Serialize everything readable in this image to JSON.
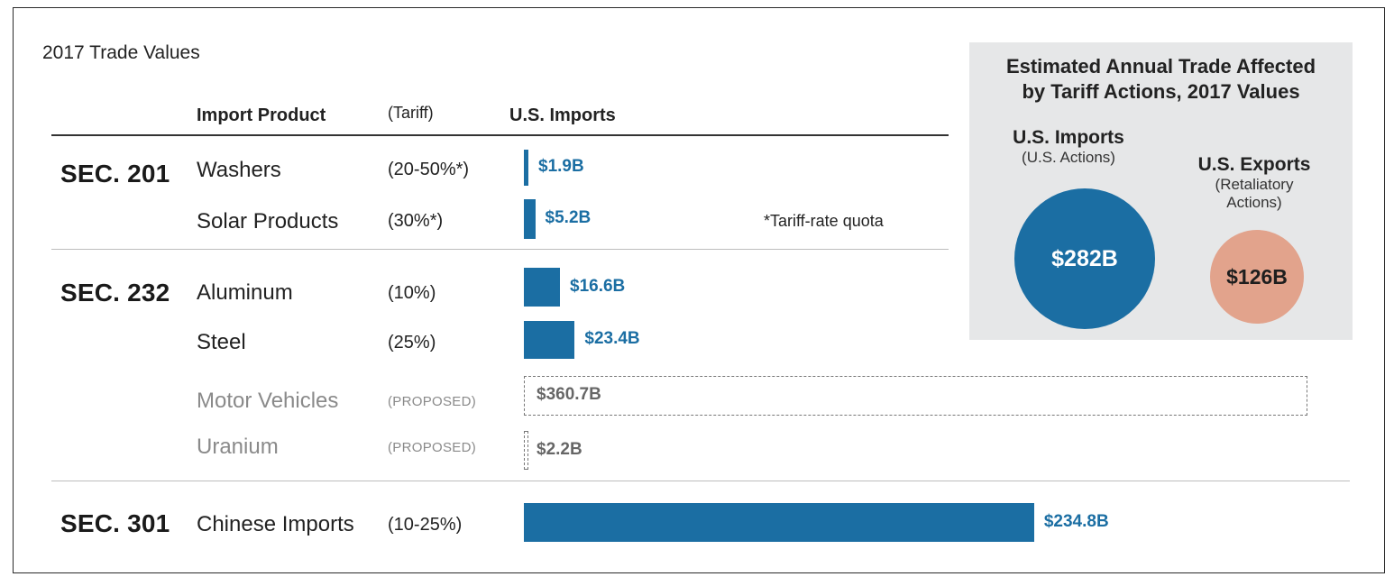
{
  "subtitle": "2017 Trade Values",
  "columns": {
    "product": "Import Product",
    "tariff": "(Tariff)",
    "imports": "U.S. Imports"
  },
  "footnote": "*Tariff-rate quota",
  "sections": [
    {
      "label": "SEC. 201"
    },
    {
      "label": "SEC. 232"
    },
    {
      "label": "SEC. 301"
    }
  ],
  "rows": [
    {
      "product": "Washers",
      "tariff": "(20-50%*)",
      "value_label": "$1.9B"
    },
    {
      "product": "Solar Products",
      "tariff": "(30%*)",
      "value_label": "$5.2B"
    },
    {
      "product": "Aluminum",
      "tariff": "(10%)",
      "value_label": "$16.6B"
    },
    {
      "product": "Steel",
      "tariff": "(25%)",
      "value_label": "$23.4B"
    },
    {
      "product": "Motor Vehicles",
      "tariff": "(PROPOSED)",
      "value_label": "$360.7B"
    },
    {
      "product": "Uranium",
      "tariff": "(PROPOSED)",
      "value_label": "$2.2B"
    },
    {
      "product": "Chinese Imports",
      "tariff": "(10-25%)",
      "value_label": "$234.8B"
    }
  ],
  "panel": {
    "title_line1": "Estimated Annual Trade Affected",
    "title_line2": "by Tariff Actions, 2017 Values",
    "imports_title": "U.S. Imports",
    "imports_sub": "(U.S. Actions)",
    "imports_value": "$282B",
    "exports_title": "U.S. Exports",
    "exports_sub1": "(Retaliatory",
    "exports_sub2": "Actions)",
    "exports_value": "$126B",
    "imports_color": "#1b6ea3",
    "exports_color": "#e2a38c",
    "background": "#e6e7e8"
  },
  "chart_data": [
    {
      "type": "bar",
      "orientation": "horizontal",
      "title": "2017 Trade Values",
      "categories": [
        "Washers",
        "Solar Products",
        "Aluminum",
        "Steel",
        "Motor Vehicles",
        "Uranium",
        "Chinese Imports"
      ],
      "groups": [
        "SEC. 201",
        "SEC. 201",
        "SEC. 232",
        "SEC. 232",
        "SEC. 232",
        "SEC. 232",
        "SEC. 301"
      ],
      "tariffs": [
        "(20-50%*)",
        "(30%*)",
        "(10%)",
        "(25%)",
        "(PROPOSED)",
        "(PROPOSED)",
        "(10-25%)"
      ],
      "values": [
        1.9,
        5.2,
        16.6,
        23.4,
        360.7,
        2.2,
        234.8
      ],
      "proposed": [
        false,
        false,
        false,
        false,
        true,
        true,
        false
      ],
      "xlabel": "U.S. Imports",
      "bar_color": "#1b6ea3"
    },
    {
      "type": "bubble",
      "title": "Estimated Annual Trade Affected by Tariff Actions, 2017 Values",
      "categories": [
        "U.S. Imports",
        "U.S. Exports"
      ],
      "values": [
        282,
        126
      ],
      "colors": [
        "#1b6ea3",
        "#e2a38c"
      ]
    }
  ]
}
